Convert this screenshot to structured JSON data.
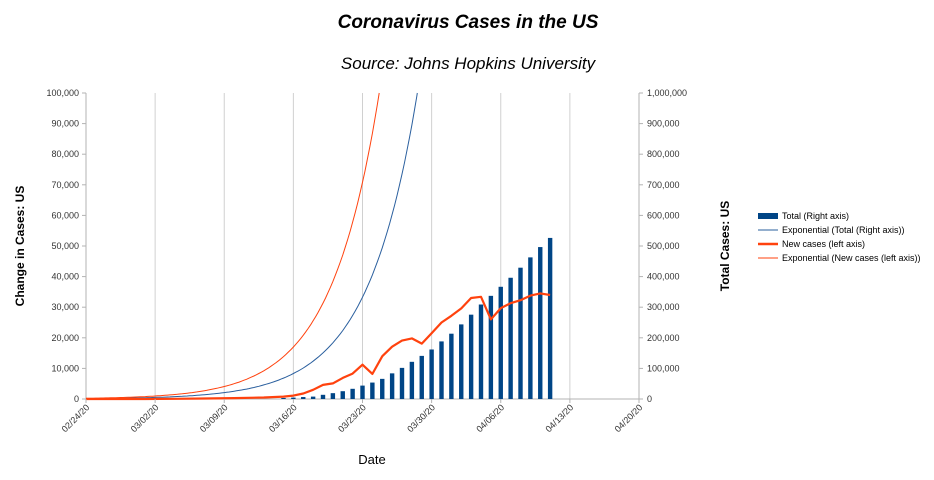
{
  "chart_data": {
    "type": "bar",
    "title": "Coronavirus Cases in the US",
    "subtitle": "Source: Johns Hopkins University",
    "xlabel": "Date",
    "ylabel_left": "Change in Cases: US",
    "ylabel_right": "Total Cases: US",
    "x_ticks": [
      "02/24/20",
      "03/02/20",
      "03/09/20",
      "03/16/20",
      "03/23/20",
      "03/30/20",
      "04/06/20",
      "04/13/20",
      "04/20/20"
    ],
    "y_left_ticks": [
      "0",
      "10,000",
      "20,000",
      "30,000",
      "40,000",
      "50,000",
      "60,000",
      "70,000",
      "80,000",
      "90,000",
      "100,000"
    ],
    "y_right_ticks": [
      "0",
      "100,000",
      "200,000",
      "300,000",
      "400,000",
      "500,000",
      "600,000",
      "700,000",
      "800,000",
      "900,000",
      "1,000,000"
    ],
    "ylim_left": [
      0,
      100000
    ],
    "ylim_right": [
      0,
      1000000
    ],
    "x_range_days": [
      0,
      56
    ],
    "grid": "vertical",
    "legend_position": "right",
    "legend": [
      "Total (Right axis)",
      "Exponential (Total (Right axis))",
      "New cases (left axis)",
      "Exponential (New cases (left axis))"
    ],
    "colors": {
      "total_bars": "#004586",
      "total_trend": "#2a5f9e",
      "new_cases": "#ff420e",
      "new_cases_trend": "#ff420e"
    },
    "series": [
      {
        "name": "Total (Right axis)",
        "axis": "right",
        "kind": "bar",
        "x": [
          "03/15/20",
          "03/16/20",
          "03/17/20",
          "03/18/20",
          "03/19/20",
          "03/20/20",
          "03/21/20",
          "03/22/20",
          "03/23/20",
          "03/24/20",
          "03/25/20",
          "03/26/20",
          "03/27/20",
          "03/28/20",
          "03/29/20",
          "03/30/20",
          "03/31/20",
          "04/01/20",
          "04/02/20",
          "04/03/20",
          "04/04/20",
          "04/05/20",
          "04/06/20",
          "04/07/20",
          "04/08/20",
          "04/09/20",
          "04/10/20",
          "04/11/20"
        ],
        "values": [
          3500,
          4600,
          6400,
          7800,
          13700,
          19100,
          25500,
          33300,
          43800,
          53700,
          65800,
          83800,
          101700,
          121500,
          140900,
          161800,
          188200,
          213400,
          243800,
          275600,
          308800,
          337100,
          366700,
          396200,
          429100,
          462800,
          496500,
          526400
        ]
      },
      {
        "name": "New cases (left axis)",
        "axis": "left",
        "kind": "line",
        "x": [
          "02/24/20",
          "02/27/20",
          "03/01/20",
          "03/04/20",
          "03/07/20",
          "03/10/20",
          "03/13/20",
          "03/15/20",
          "03/16/20",
          "03/17/20",
          "03/18/20",
          "03/19/20",
          "03/20/20",
          "03/21/20",
          "03/22/20",
          "03/23/20",
          "03/24/20",
          "03/25/20",
          "03/26/20",
          "03/27/20",
          "03/28/20",
          "03/29/20",
          "03/30/20",
          "03/31/20",
          "04/01/20",
          "04/02/20",
          "04/03/20",
          "04/04/20",
          "04/05/20",
          "04/06/20",
          "04/07/20",
          "04/08/20",
          "04/09/20",
          "04/10/20",
          "04/11/20"
        ],
        "values": [
          0,
          0,
          10,
          50,
          150,
          300,
          500,
          800,
          1100,
          1800,
          3000,
          4600,
          5100,
          6900,
          8300,
          11200,
          8200,
          14000,
          17100,
          19100,
          19800,
          18100,
          21500,
          25000,
          27200,
          29600,
          33000,
          33400,
          26000,
          29700,
          31300,
          32300,
          33800,
          34500,
          34000
        ]
      }
    ],
    "trendlines": [
      {
        "name": "Exponential (Total (Right axis))",
        "axis": "right",
        "fit": "exponential",
        "base_value": 1300,
        "doubling_days": 3.5,
        "base_day": 0
      },
      {
        "name": "Exponential (New cases (left axis))",
        "axis": "left",
        "fit": "exponential",
        "base_value": 235,
        "doubling_days": 3.4,
        "base_day": 0
      }
    ]
  }
}
